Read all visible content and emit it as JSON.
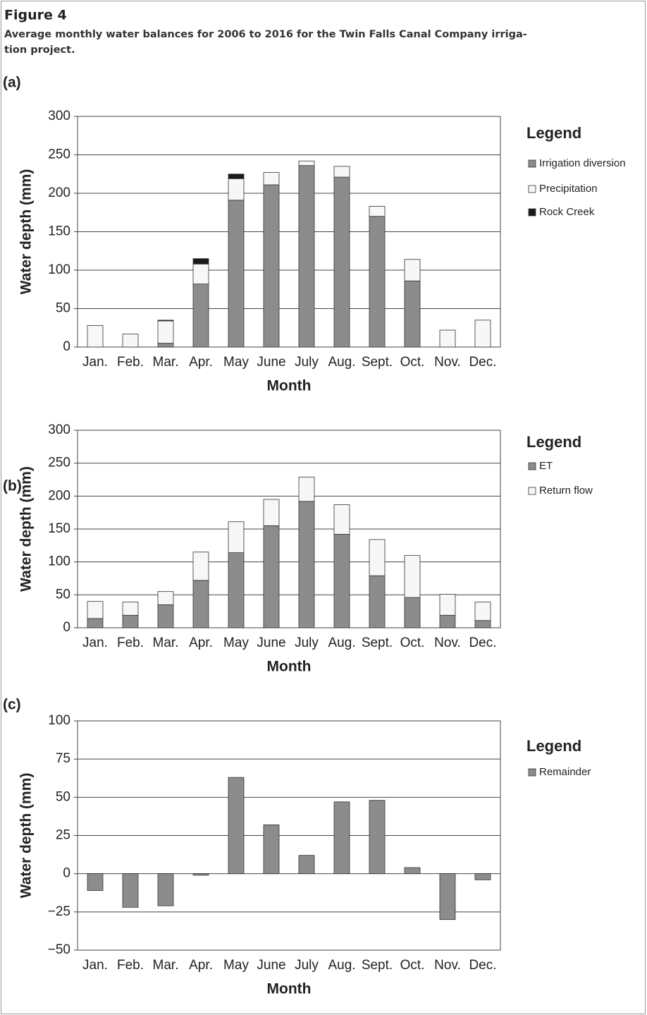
{
  "figure": {
    "label": "Figure 4",
    "caption": [
      "Average monthly water balances for 2006 to 2016 for the Twin Falls Canal Company irriga-",
      "tion project."
    ]
  },
  "chart_data": [
    {
      "type": "stacked_bar",
      "panel": "(a)",
      "x_label": "Month",
      "y_label": "Water depth (mm)",
      "legend_title": "Legend",
      "categories": [
        "Jan.",
        "Feb.",
        "Mar.",
        "Apr.",
        "May",
        "June",
        "July",
        "Aug.",
        "Sept.",
        "Oct.",
        "Nov.",
        "Dec."
      ],
      "series": [
        {
          "name": "Irrigation diversion",
          "color": "#8c8c8c",
          "values": [
            0,
            0,
            5,
            82,
            191,
            211,
            236,
            221,
            170,
            86,
            0,
            0
          ]
        },
        {
          "name": "Precipitation",
          "color": "#f7f7f7",
          "values": [
            28,
            17,
            29,
            26,
            28,
            16,
            6,
            14,
            13,
            28,
            22,
            35
          ]
        },
        {
          "name": "Rock Creek",
          "color": "#1a1a1a",
          "values": [
            0,
            0,
            1,
            7,
            6,
            0,
            0,
            0,
            0,
            0,
            0,
            0
          ]
        }
      ],
      "ylim": [
        0,
        300
      ],
      "yticks": [
        0,
        50,
        100,
        150,
        200,
        250,
        300
      ],
      "grid": true
    },
    {
      "type": "stacked_bar",
      "panel": "(b)",
      "x_label": "Month",
      "y_label": "Water depth (mm)",
      "legend_title": "Legend",
      "categories": [
        "Jan.",
        "Feb.",
        "Mar.",
        "Apr.",
        "May",
        "June",
        "July",
        "Aug.",
        "Sept.",
        "Oct.",
        "Nov.",
        "Dec."
      ],
      "series": [
        {
          "name": "ET",
          "color": "#8c8c8c",
          "values": [
            14,
            19,
            35,
            72,
            114,
            155,
            192,
            142,
            79,
            46,
            19,
            11
          ]
        },
        {
          "name": "Return flow",
          "color": "#f7f7f7",
          "values": [
            26,
            20,
            20,
            43,
            47,
            40,
            37,
            45,
            55,
            64,
            32,
            28
          ]
        }
      ],
      "ylim": [
        0,
        300
      ],
      "yticks": [
        0,
        50,
        100,
        150,
        200,
        250,
        300
      ],
      "grid": true
    },
    {
      "type": "bar",
      "panel": "(c)",
      "x_label": "Month",
      "y_label": "Water depth (mm)",
      "legend_title": "Legend",
      "categories": [
        "Jan.",
        "Feb.",
        "Mar.",
        "Apr.",
        "May",
        "June",
        "July",
        "Aug.",
        "Sept.",
        "Oct.",
        "Nov.",
        "Dec."
      ],
      "series": [
        {
          "name": "Remainder",
          "color": "#8c8c8c",
          "values": [
            -11,
            -22,
            -21,
            -1,
            63,
            32,
            12,
            47,
            48,
            4,
            -30,
            -4
          ]
        }
      ],
      "ylim": [
        -50,
        100
      ],
      "yticks": [
        {
          "value": -50,
          "label": "−50"
        },
        {
          "value": -25,
          "label": "−25"
        },
        0,
        25,
        50,
        75,
        100
      ],
      "grid": true
    }
  ]
}
